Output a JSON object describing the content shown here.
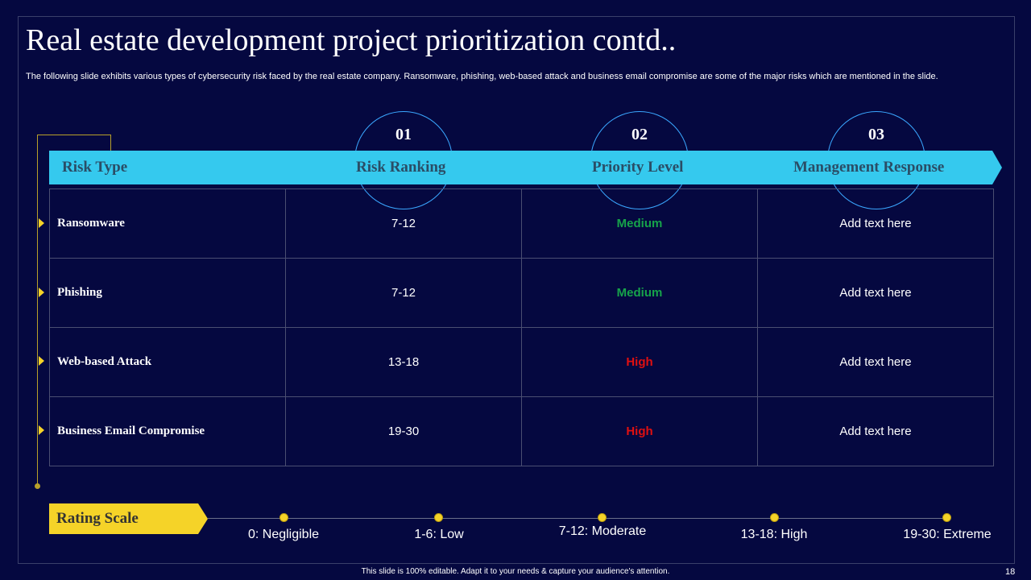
{
  "title": "Real estate development project prioritization contd..",
  "subtitle": "The following slide exhibits various types of cybersecurity risk faced by the real estate company. Ransomware, phishing, web-based attack and business email compromise are some of the major risks which are mentioned in the slide.",
  "steps": [
    "01",
    "02",
    "03"
  ],
  "headers": [
    "Risk Type",
    "Risk Ranking",
    "Priority Level",
    "Management Response"
  ],
  "rows": [
    {
      "type": "Ransomware",
      "ranking": "7-12",
      "priority": "Medium",
      "response": "Add text here"
    },
    {
      "type": "Phishing",
      "ranking": "7-12",
      "priority": "Medium",
      "response": "Add text here"
    },
    {
      "type": "Web-based Attack",
      "ranking": "13-18",
      "priority": "High",
      "response": "Add text here"
    },
    {
      "type": "Business Email Compromise",
      "ranking": "19-30",
      "priority": "High",
      "response": "Add text here"
    }
  ],
  "rating_scale": {
    "label": "Rating Scale",
    "items": [
      "0: Negligible",
      "1-6: Low",
      "7-12: Moderate",
      "13-18: High",
      "19-30: Extreme"
    ]
  },
  "footer": "This slide is 100% editable. Adapt it to your needs & capture your audience's attention.",
  "page_number": "18",
  "colors": {
    "background": "#050840",
    "header_band": "#35c9ee",
    "accent_yellow": "#f5d328",
    "medium": "#16a34a",
    "high": "#e01010"
  }
}
